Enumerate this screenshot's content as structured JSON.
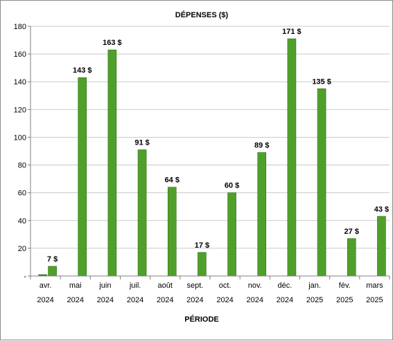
{
  "chart_data": {
    "type": "bar",
    "title": "DÉPENSES  ($)",
    "xlabel": "PÉRIODE",
    "ylabel": "",
    "ylim": [
      0,
      180
    ],
    "y_ticks": [
      "-",
      "20",
      "40",
      "60",
      "80",
      "100",
      "120",
      "140",
      "160",
      "180"
    ],
    "grid": true,
    "legend": "none",
    "categories": [
      [
        "avr.",
        "2024"
      ],
      [
        "mai",
        "2024"
      ],
      [
        "juin",
        "2024"
      ],
      [
        "juil.",
        "2024"
      ],
      [
        "août",
        "2024"
      ],
      [
        "sept.",
        "2024"
      ],
      [
        "oct.",
        "2024"
      ],
      [
        "nov.",
        "2024"
      ],
      [
        "déc.",
        "2024"
      ],
      [
        "jan.",
        "2025"
      ],
      [
        "fév.",
        "2025"
      ],
      [
        "mars",
        "2025"
      ]
    ],
    "series": [
      {
        "values": [
          1,
          0,
          0,
          0,
          0,
          0,
          0,
          0,
          0,
          0,
          0,
          0
        ],
        "labels": [
          "",
          "",
          "",
          "",
          "",
          "",
          "",
          "",
          "",
          "",
          "",
          ""
        ],
        "color": "#3f7f1f"
      },
      {
        "values": [
          7,
          143,
          163,
          91,
          64,
          17,
          60,
          89,
          171,
          135,
          27,
          43
        ],
        "labels": [
          "7 $",
          "143 $",
          "163 $",
          "91 $",
          "64 $",
          "17 $",
          "60 $",
          "89 $",
          "171 $",
          "135 $",
          "27 $",
          "43 $"
        ],
        "color": "#4fa02a"
      }
    ]
  }
}
